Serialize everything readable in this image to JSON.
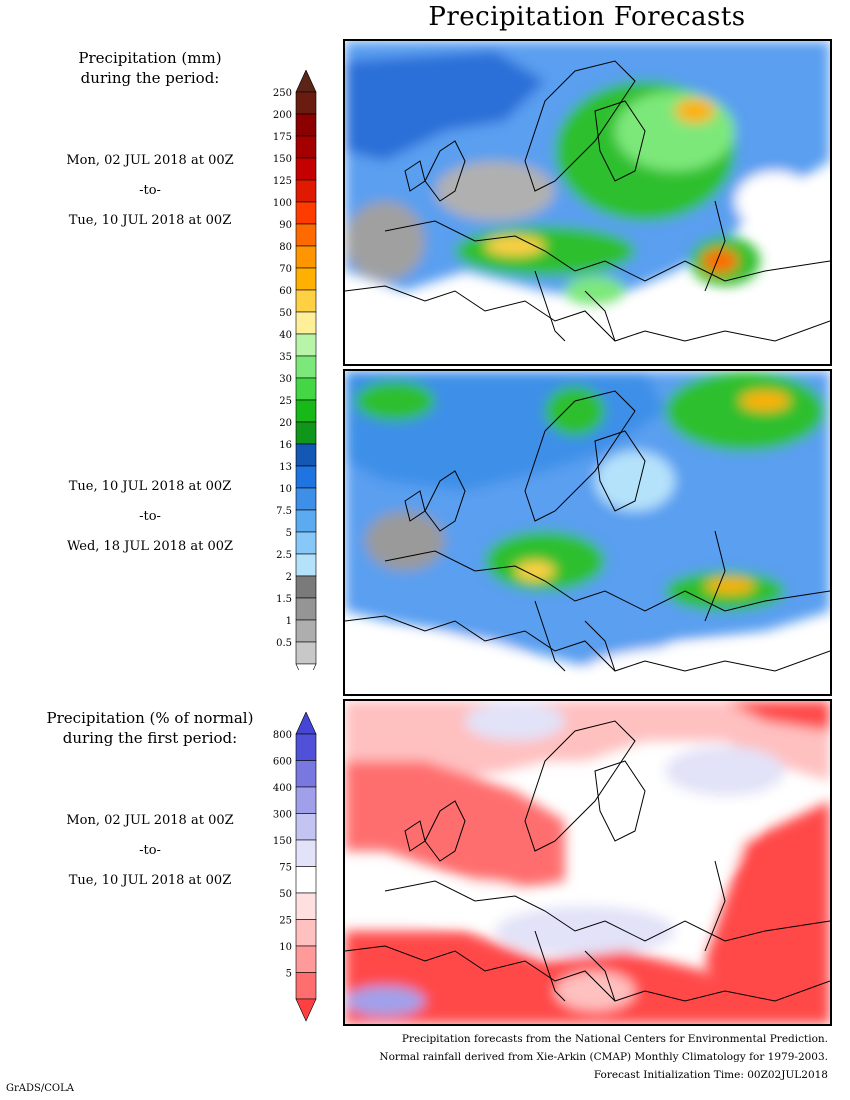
{
  "title": "Precipitation Forecasts",
  "legend_mm": {
    "heading_line1": "Precipitation (mm)",
    "heading_line2": "during the period:",
    "ticks": [
      "250",
      "200",
      "175",
      "150",
      "125",
      "100",
      "90",
      "80",
      "70",
      "60",
      "50",
      "40",
      "35",
      "30",
      "25",
      "20",
      "16",
      "13",
      "10",
      "7.5",
      "5",
      "2.5",
      "2",
      "1.5",
      "1",
      "0.5"
    ],
    "colors": [
      "#6b1c10",
      "#8b0000",
      "#a50000",
      "#c40000",
      "#e01a00",
      "#ff3c00",
      "#ff6a00",
      "#ff9500",
      "#ffb000",
      "#ffd044",
      "#ffef99",
      "#b8f5a8",
      "#7de87a",
      "#45d645",
      "#18b818",
      "#10961a",
      "#1258b4",
      "#1f74e2",
      "#3d8fe8",
      "#5caaf0",
      "#87c8f8",
      "#b5e2fb",
      "#7a7a7a",
      "#959595",
      "#aeaeae",
      "#c8c8c8"
    ],
    "top_arrow_color": "#5a2418"
  },
  "period1": {
    "start": "Mon, 02 JUL 2018 at 00Z",
    "sep": "-to-",
    "end": "Tue, 10 JUL 2018 at 00Z"
  },
  "period2": {
    "start": "Tue, 10 JUL 2018 at 00Z",
    "sep": "-to-",
    "end": "Wed, 18 JUL 2018 at 00Z"
  },
  "legend_pct": {
    "heading_line1": "Precipitation (% of normal)",
    "heading_line2": "during the first period:",
    "ticks": [
      "800",
      "600",
      "400",
      "300",
      "150",
      "75",
      "50",
      "25",
      "10",
      "5"
    ],
    "colors": [
      "#5050d8",
      "#7878e0",
      "#a0a0ea",
      "#c4c4f2",
      "#e2e2f8",
      "#ffffff",
      "#ffe0e0",
      "#ffc0c0",
      "#ff9a9a",
      "#ff6e6e",
      "#ff4848"
    ],
    "top_arrow_color": "#4646d6",
    "bottom_arrow_color": "#ff4040"
  },
  "period3": {
    "start": "Mon, 02 JUL 2018 at 00Z",
    "sep": "-to-",
    "end": "Tue, 10 JUL 2018 at 00Z"
  },
  "credits": {
    "line1": "Precipitation forecasts from the National Centers for Environmental Prediction.",
    "line2": "Normal rainfall derived from Xie-Arkin (CMAP) Monthly Climatology for 1979-2003.",
    "line3": "Forecast Initialization Time: 00Z02JUL2018"
  },
  "footer": "GrADS/COLA"
}
